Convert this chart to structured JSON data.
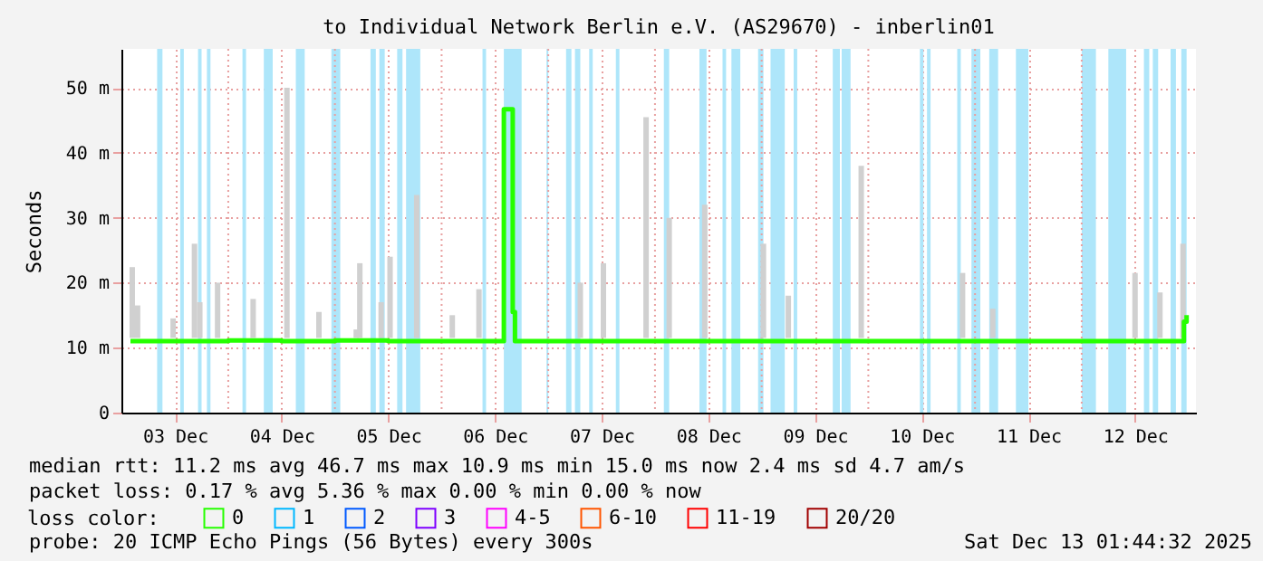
{
  "chart_data": {
    "type": "line",
    "title": "to Individual Network Berlin e.V. (AS29670) - inberlin01",
    "ylabel": "Seconds",
    "legend_title": "loss color:",
    "legend": "bottom",
    "grid": true,
    "xlim": [
      "2025-12-03T02:00",
      "2025-12-12T23:40"
    ],
    "xticks": [
      {
        "value": "2025-12-03T12:00",
        "label": "03 Dec"
      },
      {
        "value": "2025-12-04T00:00",
        "label": null
      },
      {
        "value": "2025-12-04T12:00",
        "label": "04 Dec"
      },
      {
        "value": "2025-12-05T00:00",
        "label": null
      },
      {
        "value": "2025-12-05T12:00",
        "label": "05 Dec"
      },
      {
        "value": "2025-12-06T00:00",
        "label": null
      },
      {
        "value": "2025-12-06T12:00",
        "label": "06 Dec"
      },
      {
        "value": "2025-12-07T00:00",
        "label": null
      },
      {
        "value": "2025-12-07T12:00",
        "label": "07 Dec"
      },
      {
        "value": "2025-12-08T00:00",
        "label": null
      },
      {
        "value": "2025-12-08T12:00",
        "label": "08 Dec"
      },
      {
        "value": "2025-12-09T00:00",
        "label": null
      },
      {
        "value": "2025-12-09T12:00",
        "label": "09 Dec"
      },
      {
        "value": "2025-12-10T00:00",
        "label": null
      },
      {
        "value": "2025-12-10T12:00",
        "label": "10 Dec"
      },
      {
        "value": "2025-12-11T00:00",
        "label": null
      },
      {
        "value": "2025-12-11T12:00",
        "label": "11 Dec"
      },
      {
        "value": "2025-12-12T00:00",
        "label": null
      },
      {
        "value": "2025-12-12T12:00",
        "label": "12 Dec"
      }
    ],
    "ylim": [
      0,
      56
    ],
    "yticks": [
      0,
      {
        "value": 10,
        "label": "10 m"
      },
      {
        "value": 20,
        "label": "20 m"
      },
      {
        "value": 30,
        "label": "30 m"
      },
      {
        "value": 40,
        "label": "40 m"
      },
      {
        "value": 50,
        "label": "50 m"
      }
    ],
    "series": [
      {
        "type": "bar",
        "color": "#d0d0d0",
        "x": [
          "2025-12-03T02:24",
          "2025-12-03T03:36",
          "2025-12-03T11:36",
          "2025-12-03T16:24",
          "2025-12-03T17:36",
          "2025-12-03T21:36",
          "2025-12-04T05:36",
          "2025-12-04T13:12",
          "2025-12-04T20:24",
          "2025-12-05T04:48",
          "2025-12-05T05:36",
          "2025-12-05T10:24",
          "2025-12-05T12:24",
          "2025-12-05T18:24",
          "2025-12-06T02:24",
          "2025-12-06T08:24",
          "2025-12-07T07:12",
          "2025-12-07T12:24",
          "2025-12-07T22:00",
          "2025-12-08T03:12",
          "2025-12-08T11:12",
          "2025-12-09T00:24",
          "2025-12-09T06:00",
          "2025-12-09T22:24",
          "2025-12-10T21:12",
          "2025-12-11T04:00",
          "2025-12-12T12:00",
          "2025-12-12T17:36",
          "2025-12-12T22:48"
        ],
        "base": [
          11.5,
          11.5,
          11.5,
          11.5,
          11.5,
          11.5,
          11.5,
          11.5,
          11.5,
          11.5,
          11.5,
          11.5,
          11.5,
          11.5,
          11.5,
          11.5,
          11.5,
          11.5,
          11.5,
          11.5,
          11.5,
          11.5,
          11.5,
          11.5,
          11.5,
          11.5,
          11.5,
          11.5,
          11.5
        ],
        "values": [
          10.9,
          5,
          3,
          14.5,
          5.5,
          8.5,
          6,
          38.5,
          4,
          1.3,
          11.5,
          5.5,
          12.5,
          22,
          3.5,
          7.5,
          8.5,
          11.5,
          34,
          18.5,
          20.5,
          14.5,
          6.5,
          26.5,
          10,
          4.5,
          10,
          7,
          14.5
        ]
      },
      {
        "name": "0",
        "color": "#26ff00",
        "x": [
          "2025-12-03T02:00",
          "2025-12-03T12:00",
          "2025-12-04T00:00",
          "2025-12-04T12:00",
          "2025-12-05T00:00",
          "2025-12-05T12:00",
          "2025-12-06T00:00",
          "2025-12-06T13:30",
          "2025-12-06T14:00",
          "2025-12-06T14:48",
          "2025-12-06T16:00",
          "2025-12-06T16:30",
          "2025-12-07T00:00",
          "2025-12-07T12:00",
          "2025-12-08T00:00",
          "2025-12-08T12:00",
          "2025-12-09T00:00",
          "2025-12-09T12:00",
          "2025-12-10T00:00",
          "2025-12-10T12:00",
          "2025-12-11T00:00",
          "2025-12-11T12:00",
          "2025-12-12T00:00",
          "2025-12-12T12:00",
          "2025-12-12T22:30",
          "2025-12-12T23:00",
          "2025-12-12T23:36"
        ],
        "values": [
          11,
          11,
          11.1,
          11,
          11.1,
          11,
          11,
          11,
          46.7,
          46.7,
          15.5,
          11,
          11,
          11,
          11,
          11,
          11,
          11,
          11,
          11,
          11,
          11,
          11,
          11,
          11,
          14,
          15
        ]
      },
      {
        "name": "1",
        "color": "#00b8ff"
      },
      {
        "name": "2",
        "color": "#0059ff"
      },
      {
        "name": "3",
        "color": "#7e00ff"
      },
      {
        "name": "4-5",
        "color": "#ff00ff"
      },
      {
        "name": "6-10",
        "color": "#ff5500"
      },
      {
        "name": "11-19",
        "color": "#ff0000"
      },
      {
        "name": "20/20",
        "color": "#a10000"
      }
    ],
    "bands": [
      {
        "axis": "x",
        "from": "2025-12-03T08:00",
        "to": "2025-12-03T09:12",
        "color": "#aee6fa"
      },
      {
        "axis": "x",
        "from": "2025-12-03T13:12",
        "to": "2025-12-03T14:00",
        "color": "#aee6fa"
      },
      {
        "axis": "x",
        "from": "2025-12-03T17:12",
        "to": "2025-12-03T18:00",
        "color": "#aee6fa"
      },
      {
        "axis": "x",
        "from": "2025-12-03T19:12",
        "to": "2025-12-03T20:00",
        "color": "#aee6fa"
      },
      {
        "axis": "x",
        "from": "2025-12-04T03:12",
        "to": "2025-12-04T04:00",
        "color": "#aee6fa"
      },
      {
        "axis": "x",
        "from": "2025-12-04T08:00",
        "to": "2025-12-04T10:00",
        "color": "#aee6fa"
      },
      {
        "axis": "x",
        "from": "2025-12-04T15:12",
        "to": "2025-12-04T17:12",
        "color": "#aee6fa"
      },
      {
        "axis": "x",
        "from": "2025-12-04T23:12",
        "to": "2025-12-05T01:12",
        "color": "#aee6fa"
      },
      {
        "axis": "x",
        "from": "2025-12-05T08:00",
        "to": "2025-12-05T09:12",
        "color": "#aee6fa"
      },
      {
        "axis": "x",
        "from": "2025-12-05T10:00",
        "to": "2025-12-05T11:12",
        "color": "#aee6fa"
      },
      {
        "axis": "x",
        "from": "2025-12-05T14:00",
        "to": "2025-12-05T15:12",
        "color": "#aee6fa"
      },
      {
        "axis": "x",
        "from": "2025-12-05T16:00",
        "to": "2025-12-05T19:12",
        "color": "#aee6fa"
      },
      {
        "axis": "x",
        "from": "2025-12-06T09:12",
        "to": "2025-12-06T10:00",
        "color": "#aee6fa"
      },
      {
        "axis": "x",
        "from": "2025-12-06T14:00",
        "to": "2025-12-06T18:00",
        "color": "#aee6fa"
      },
      {
        "axis": "x",
        "from": "2025-12-06T23:36",
        "to": "2025-12-07T00:00",
        "color": "#aee6fa"
      },
      {
        "axis": "x",
        "from": "2025-12-07T04:00",
        "to": "2025-12-07T05:12",
        "color": "#aee6fa"
      },
      {
        "axis": "x",
        "from": "2025-12-07T06:00",
        "to": "2025-12-07T07:12",
        "color": "#aee6fa"
      },
      {
        "axis": "x",
        "from": "2025-12-07T09:12",
        "to": "2025-12-07T10:00",
        "color": "#aee6fa"
      },
      {
        "axis": "x",
        "from": "2025-12-07T15:12",
        "to": "2025-12-07T16:00",
        "color": "#aee6fa"
      },
      {
        "axis": "x",
        "from": "2025-12-08T02:00",
        "to": "2025-12-08T03:12",
        "color": "#aee6fa"
      },
      {
        "axis": "x",
        "from": "2025-12-08T10:00",
        "to": "2025-12-08T11:36",
        "color": "#aee6fa"
      },
      {
        "axis": "x",
        "from": "2025-12-08T15:12",
        "to": "2025-12-08T16:00",
        "color": "#aee6fa"
      },
      {
        "axis": "x",
        "from": "2025-12-08T17:12",
        "to": "2025-12-08T19:12",
        "color": "#aee6fa"
      },
      {
        "axis": "x",
        "from": "2025-12-08T23:12",
        "to": "2025-12-09T00:24",
        "color": "#aee6fa"
      },
      {
        "axis": "x",
        "from": "2025-12-09T02:00",
        "to": "2025-12-09T05:12",
        "color": "#aee6fa"
      },
      {
        "axis": "x",
        "from": "2025-12-09T07:12",
        "to": "2025-12-09T08:00",
        "color": "#aee6fa"
      },
      {
        "axis": "x",
        "from": "2025-12-09T16:00",
        "to": "2025-12-09T17:36",
        "color": "#aee6fa"
      },
      {
        "axis": "x",
        "from": "2025-12-09T18:00",
        "to": "2025-12-09T20:00",
        "color": "#aee6fa"
      },
      {
        "axis": "x",
        "from": "2025-12-10T11:36",
        "to": "2025-12-10T12:24",
        "color": "#aee6fa"
      },
      {
        "axis": "x",
        "from": "2025-12-10T13:12",
        "to": "2025-12-10T14:00",
        "color": "#aee6fa"
      },
      {
        "axis": "x",
        "from": "2025-12-10T20:00",
        "to": "2025-12-10T20:48",
        "color": "#aee6fa"
      },
      {
        "axis": "x",
        "from": "2025-12-10T23:12",
        "to": "2025-12-11T01:12",
        "color": "#aee6fa"
      },
      {
        "axis": "x",
        "from": "2025-12-11T03:12",
        "to": "2025-12-11T05:12",
        "color": "#aee6fa"
      },
      {
        "axis": "x",
        "from": "2025-12-11T09:12",
        "to": "2025-12-11T12:00",
        "color": "#aee6fa"
      },
      {
        "axis": "x",
        "from": "2025-12-12T00:00",
        "to": "2025-12-12T03:12",
        "color": "#aee6fa"
      },
      {
        "axis": "x",
        "from": "2025-12-12T06:00",
        "to": "2025-12-12T10:00",
        "color": "#aee6fa"
      },
      {
        "axis": "x",
        "from": "2025-12-12T14:00",
        "to": "2025-12-12T15:12",
        "color": "#aee6fa"
      },
      {
        "axis": "x",
        "from": "2025-12-12T16:00",
        "to": "2025-12-12T17:12",
        "color": "#aee6fa"
      },
      {
        "axis": "x",
        "from": "2025-12-12T20:00",
        "to": "2025-12-12T21:12",
        "color": "#aee6fa"
      },
      {
        "axis": "x",
        "from": "2025-12-12T22:24",
        "to": "2025-12-12T23:36",
        "color": "#aee6fa"
      }
    ],
    "annotations": [
      "median rtt:  11.2 ms avg  46.7 ms max  10.9 ms min  15.0 ms now  2.4 ms sd  4.7   am/s",
      "packet loss: 0.17 % avg  5.36 % max  0.00 % min  0.00 % now",
      "probe:       20 ICMP Echo Pings (56 Bytes) every 300s",
      "Sat Dec 13 01:44:32 2025"
    ]
  }
}
